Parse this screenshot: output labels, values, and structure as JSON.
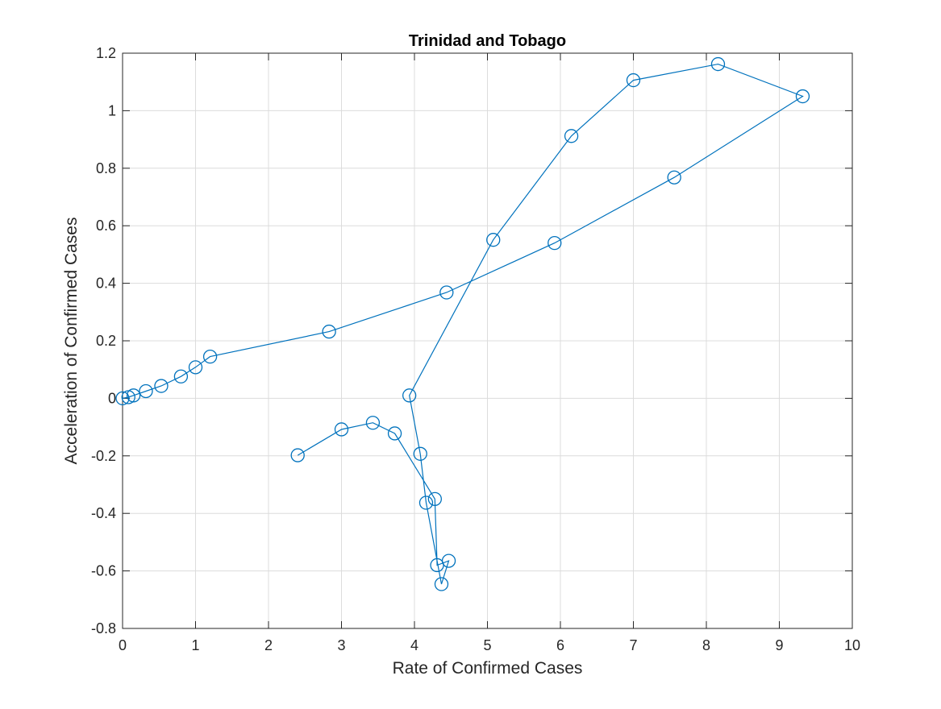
{
  "chart_data": {
    "type": "line",
    "title": "Trinidad and Tobago",
    "xlabel": "Rate of Confirmed Cases",
    "ylabel": "Acceleration of Confirmed Cases",
    "xlim": [
      0,
      10
    ],
    "ylim": [
      -0.8,
      1.2
    ],
    "xticks": [
      0,
      1,
      2,
      3,
      4,
      5,
      6,
      7,
      8,
      9,
      10
    ],
    "yticks": [
      -0.8,
      -0.6,
      -0.4,
      -0.2,
      0,
      0.2,
      0.4,
      0.6,
      0.8,
      1,
      1.2
    ],
    "xtick_labels": [
      "0",
      "1",
      "2",
      "3",
      "4",
      "5",
      "6",
      "7",
      "8",
      "9",
      "10"
    ],
    "ytick_labels": [
      "-0.8",
      "-0.6",
      "-0.4",
      "-0.2",
      "0",
      "0.2",
      "0.4",
      "0.6",
      "0.8",
      "1",
      "1.2"
    ],
    "grid": true,
    "marker": "circle",
    "series": [
      {
        "color": "#0072BD",
        "points": [
          [
            0.0,
            0.0
          ],
          [
            0.08,
            0.004
          ],
          [
            0.15,
            0.01
          ],
          [
            0.32,
            0.025
          ],
          [
            0.53,
            0.043
          ],
          [
            0.8,
            0.076
          ],
          [
            1.0,
            0.108
          ],
          [
            1.2,
            0.145
          ],
          [
            2.83,
            0.232
          ],
          [
            4.44,
            0.368
          ],
          [
            5.92,
            0.54
          ],
          [
            7.56,
            0.768
          ],
          [
            9.32,
            1.05
          ],
          [
            8.16,
            1.162
          ],
          [
            7.0,
            1.106
          ],
          [
            6.15,
            0.912
          ],
          [
            5.08,
            0.551
          ],
          [
            3.93,
            0.01
          ],
          [
            4.08,
            -0.193
          ],
          [
            4.16,
            -0.363
          ],
          [
            4.37,
            -0.646
          ],
          [
            4.47,
            -0.565
          ],
          [
            4.31,
            -0.58
          ],
          [
            4.28,
            -0.35
          ],
          [
            3.73,
            -0.122
          ],
          [
            3.43,
            -0.085
          ],
          [
            3.0,
            -0.108
          ],
          [
            2.4,
            -0.198
          ]
        ]
      }
    ]
  }
}
